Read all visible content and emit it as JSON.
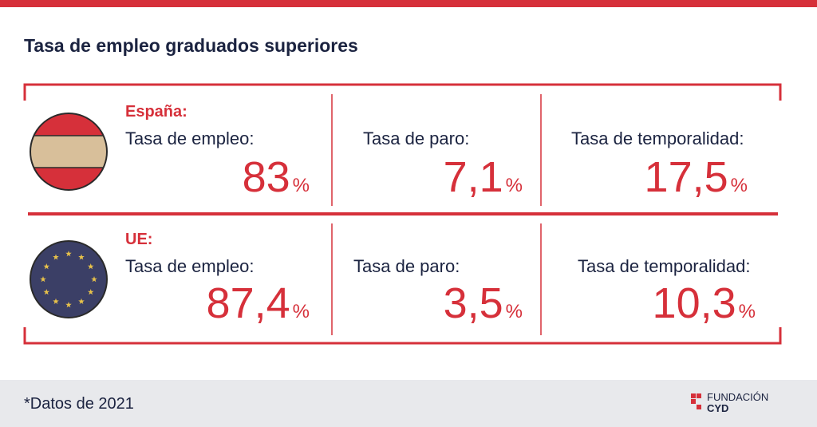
{
  "header": {
    "title": "Tasa de empleo graduados superiores"
  },
  "unit": "%",
  "rows": [
    {
      "region": "España:",
      "stats": [
        {
          "label": "Tasa de empleo:",
          "value": "83"
        },
        {
          "label": "Tasa de paro:",
          "value": "7,1"
        },
        {
          "label": "Tasa de temporalidad:",
          "value": "17,5"
        }
      ]
    },
    {
      "region": "UE:",
      "stats": [
        {
          "label": "Tasa de empleo:",
          "value": "87,4"
        },
        {
          "label": "Tasa de paro:",
          "value": "3,5"
        },
        {
          "label": "Tasa de temporalidad:",
          "value": "10,3"
        }
      ]
    }
  ],
  "footer": {
    "note": "*Datos de 2021",
    "brand": {
      "line1": "FUNDACIÓN",
      "line2": "CYD"
    }
  }
}
